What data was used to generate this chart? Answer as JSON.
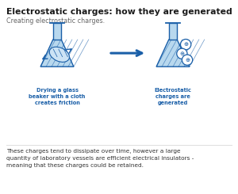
{
  "title": "Electrostatic charges: how they are generated",
  "subtitle": "Creating electrostatic charges.",
  "caption": "These charges tend to dissipate over time, however a large\nquantity of laboratory vessels are efficient electrical insulators -\nmeaning that these charges could be retained.",
  "label_left": "Drying a glass\nbeaker with a cloth\ncreates friction",
  "label_right": "Electrostatic\ncharges are\ngenerated",
  "bg_color": "#ffffff",
  "title_color": "#1a1a1a",
  "subtitle_color": "#666666",
  "caption_color": "#333333",
  "label_color": "#1a5fa8",
  "flask_light": "#b8d8ee",
  "flask_dark": "#1a5fa8",
  "arrow_color": "#1a5fa8",
  "sep_color": "#dddddd"
}
